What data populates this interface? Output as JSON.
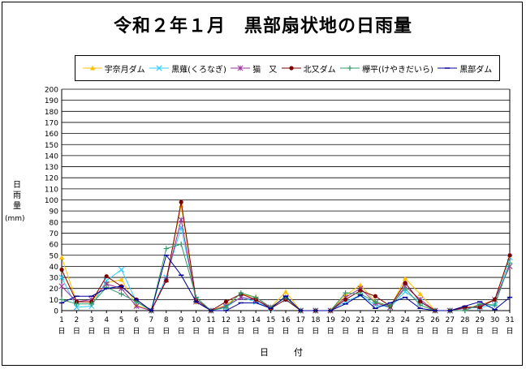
{
  "chart_data": {
    "type": "line",
    "title": "令和２年１月　黒部扇状地の日雨量",
    "ylabel": "日雨量",
    "yunit": "(mm)",
    "xlabel": "日　付",
    "ylim": [
      0,
      200
    ],
    "ytick_step": 10,
    "grid": true,
    "legend_position": "top",
    "categories": [
      "1日",
      "2日",
      "3日",
      "4日",
      "5日",
      "6日",
      "7日",
      "8日",
      "9日",
      "10日",
      "11日",
      "12日",
      "13日",
      "14日",
      "15日",
      "16日",
      "17日",
      "18日",
      "19日",
      "20日",
      "21日",
      "22日",
      "23日",
      "24日",
      "25日",
      "26日",
      "27日",
      "28日",
      "29日",
      "30日",
      "31日"
    ],
    "series": [
      {
        "name": "宇奈月ダム",
        "color": "#ffc000",
        "marker": "triangle",
        "values": [
          48,
          8,
          8,
          25,
          28,
          5,
          0,
          28,
          95,
          8,
          0,
          5,
          15,
          12,
          3,
          17,
          0,
          0,
          0,
          14,
          23,
          8,
          3,
          29,
          15,
          0,
          0,
          2,
          5,
          10,
          50
        ]
      },
      {
        "name": "黒薙(くろなぎ)",
        "color": "#33ccff",
        "marker": "x",
        "values": [
          30,
          3,
          4,
          27,
          37,
          8,
          0,
          30,
          75,
          10,
          0,
          3,
          12,
          8,
          2,
          10,
          0,
          0,
          0,
          8,
          14,
          5,
          3,
          17,
          8,
          0,
          0,
          2,
          3,
          5,
          48
        ]
      },
      {
        "name": "猫　又",
        "color": "#993399",
        "marker": "star",
        "values": [
          22,
          8,
          10,
          24,
          20,
          4,
          0,
          28,
          82,
          8,
          0,
          4,
          12,
          10,
          3,
          12,
          0,
          0,
          0,
          12,
          20,
          7,
          3,
          22,
          10,
          0,
          0,
          2,
          4,
          10,
          40
        ]
      },
      {
        "name": "北又ダム",
        "color": "#800000",
        "marker": "dot",
        "values": [
          37,
          8,
          8,
          31,
          22,
          10,
          0,
          27,
          98,
          10,
          0,
          8,
          15,
          10,
          2,
          10,
          0,
          0,
          0,
          10,
          18,
          13,
          4,
          25,
          8,
          0,
          0,
          3,
          3,
          10,
          50
        ]
      },
      {
        "name": "欅平(けやきだいら)",
        "color": "#339966",
        "marker": "plus",
        "values": [
          10,
          6,
          6,
          21,
          15,
          8,
          0,
          56,
          60,
          12,
          0,
          3,
          16,
          12,
          3,
          12,
          0,
          0,
          0,
          16,
          15,
          8,
          4,
          20,
          5,
          0,
          0,
          0,
          6,
          5,
          43
        ]
      },
      {
        "name": "黒部ダム",
        "color": "#000099",
        "marker": "dash",
        "values": [
          7,
          13,
          13,
          20,
          22,
          10,
          0,
          50,
          32,
          8,
          0,
          0,
          7,
          7,
          2,
          13,
          0,
          0,
          0,
          6,
          14,
          2,
          7,
          12,
          2,
          0,
          0,
          4,
          8,
          1,
          12
        ]
      }
    ]
  }
}
